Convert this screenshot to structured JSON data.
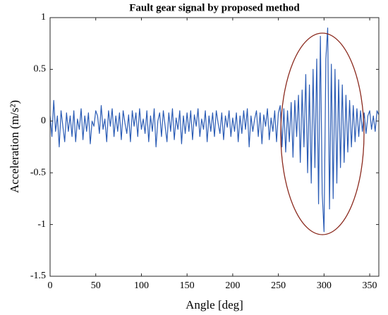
{
  "chart_data": {
    "type": "line",
    "title": "Fault gear signal by proposed method",
    "xlabel": "Angle [deg]",
    "ylabel": "Acceleration (m/s²)",
    "xlim": [
      0,
      360
    ],
    "ylim": [
      -1.5,
      1
    ],
    "xticks": [
      0,
      50,
      100,
      150,
      200,
      250,
      300,
      350
    ],
    "yticks": [
      -1.5,
      -1,
      -0.5,
      0,
      0.5,
      1
    ],
    "grid": false,
    "x": [
      0,
      2,
      4,
      6,
      8,
      10,
      12,
      14,
      16,
      18,
      20,
      22,
      24,
      26,
      28,
      30,
      32,
      34,
      36,
      38,
      40,
      42,
      44,
      46,
      48,
      50,
      52,
      54,
      56,
      58,
      60,
      62,
      64,
      66,
      68,
      70,
      72,
      74,
      76,
      78,
      80,
      82,
      84,
      86,
      88,
      90,
      92,
      94,
      96,
      98,
      100,
      102,
      104,
      106,
      108,
      110,
      112,
      114,
      116,
      118,
      120,
      122,
      124,
      126,
      128,
      130,
      132,
      134,
      136,
      138,
      140,
      142,
      144,
      146,
      148,
      150,
      152,
      154,
      156,
      158,
      160,
      162,
      164,
      166,
      168,
      170,
      172,
      174,
      176,
      178,
      180,
      182,
      184,
      186,
      188,
      190,
      192,
      194,
      196,
      198,
      200,
      202,
      204,
      206,
      208,
      210,
      212,
      214,
      216,
      218,
      220,
      222,
      224,
      226,
      228,
      230,
      232,
      234,
      236,
      238,
      240,
      242,
      244,
      246,
      248,
      250,
      252,
      254,
      256,
      258,
      260,
      262,
      264,
      266,
      268,
      270,
      272,
      274,
      276,
      278,
      280,
      282,
      284,
      286,
      288,
      290,
      292,
      294,
      296,
      298,
      300,
      302,
      304,
      306,
      308,
      310,
      312,
      314,
      316,
      318,
      320,
      322,
      324,
      326,
      328,
      330,
      332,
      334,
      336,
      338,
      340,
      342,
      344,
      346,
      348,
      350,
      352,
      354,
      356,
      358,
      360
    ],
    "series": [
      {
        "color": "#2b5cb5",
        "values": [
          0.05,
          -0.15,
          0.2,
          -0.1,
          0.05,
          -0.25,
          0.1,
          -0.05,
          -0.2,
          0.08,
          -0.1,
          0.05,
          -0.15,
          0.1,
          -0.2,
          0.02,
          -0.08,
          0.12,
          -0.18,
          0.05,
          -0.1,
          0.08,
          -0.22,
          0.0,
          -0.05,
          0.1,
          0.05,
          -0.12,
          0.15,
          -0.08,
          0.02,
          -0.2,
          0.1,
          -0.05,
          0.12,
          -0.15,
          0.05,
          -0.1,
          0.08,
          -0.18,
          0.1,
          -0.02,
          -0.12,
          0.06,
          -0.2,
          0.1,
          -0.05,
          0.08,
          -0.15,
          0.12,
          -0.08,
          0.02,
          -0.12,
          0.1,
          -0.2,
          0.05,
          -0.1,
          0.12,
          -0.25,
          0.0,
          0.08,
          -0.15,
          0.1,
          -0.05,
          -0.2,
          0.08,
          -0.1,
          0.12,
          -0.18,
          0.03,
          -0.08,
          0.1,
          -0.22,
          0.05,
          -0.12,
          0.08,
          -0.1,
          0.1,
          -0.18,
          0.06,
          -0.05,
          0.12,
          -0.15,
          0.02,
          -0.08,
          0.1,
          -0.2,
          0.05,
          -0.1,
          0.08,
          -0.15,
          0.1,
          -0.02,
          -0.12,
          0.08,
          -0.18,
          0.05,
          -0.06,
          0.1,
          -0.15,
          0.03,
          -0.1,
          0.08,
          -0.2,
          0.05,
          -0.12,
          0.1,
          -0.08,
          0.12,
          -0.25,
          0.05,
          -0.1,
          0.02,
          0.1,
          -0.15,
          0.08,
          -0.22,
          0.06,
          -0.05,
          0.12,
          -0.18,
          0.03,
          -0.1,
          0.1,
          -0.2,
          0.08,
          0.15,
          -0.25,
          0.12,
          -0.3,
          0.1,
          -0.2,
          0.18,
          -0.35,
          0.2,
          -0.15,
          0.25,
          -0.4,
          0.3,
          -0.25,
          0.45,
          -0.5,
          0.35,
          -0.6,
          0.5,
          -0.45,
          0.6,
          -0.8,
          0.82,
          -0.7,
          -1.07,
          0.6,
          0.9,
          -0.85,
          0.55,
          -0.75,
          0.5,
          -0.6,
          0.4,
          -0.45,
          0.35,
          -0.4,
          0.25,
          -0.3,
          0.2,
          -0.25,
          0.15,
          -0.2,
          0.12,
          -0.15,
          0.1,
          -0.1,
          0.08,
          -0.12,
          0.05,
          0.1,
          -0.08,
          0.05,
          -0.1,
          0.1,
          0.06
        ]
      }
    ]
  }
}
